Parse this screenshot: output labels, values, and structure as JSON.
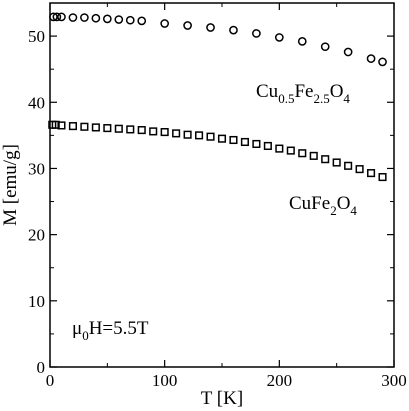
{
  "chart_data": {
    "type": "scatter",
    "xlabel": "T [K]",
    "ylabel": "M [emu/g]",
    "xlim": [
      0,
      300
    ],
    "ylim": [
      0,
      55
    ],
    "x_ticks": [
      0,
      100,
      200,
      300
    ],
    "y_ticks": [
      0,
      10,
      20,
      30,
      40,
      50
    ],
    "grid": false,
    "annotation": {
      "symbol": "μ",
      "sub": "0",
      "text": "H=5.5T"
    },
    "series": [
      {
        "name": "Cu0.5Fe2.5O4",
        "label_parts": [
          {
            "t": "Cu",
            "sub": false
          },
          {
            "t": "0.5",
            "sub": true
          },
          {
            "t": "Fe",
            "sub": false
          },
          {
            "t": "2.5",
            "sub": true
          },
          {
            "t": "O",
            "sub": false
          },
          {
            "t": "4",
            "sub": true
          }
        ],
        "marker": "circle",
        "x": [
          3,
          6,
          10,
          20,
          30,
          40,
          50,
          60,
          70,
          80,
          100,
          120,
          140,
          160,
          180,
          200,
          220,
          240,
          260,
          280,
          290
        ],
        "y": [
          52.9,
          52.9,
          52.9,
          52.8,
          52.8,
          52.7,
          52.6,
          52.5,
          52.4,
          52.3,
          51.9,
          51.6,
          51.3,
          50.9,
          50.4,
          49.8,
          49.2,
          48.4,
          47.6,
          46.6,
          46.1
        ]
      },
      {
        "name": "CuFe2O4",
        "label_parts": [
          {
            "t": "CuFe",
            "sub": false
          },
          {
            "t": "2",
            "sub": true
          },
          {
            "t": "O",
            "sub": false
          },
          {
            "t": "4",
            "sub": true
          }
        ],
        "marker": "square",
        "x": [
          2,
          5,
          10,
          20,
          30,
          40,
          50,
          60,
          70,
          80,
          90,
          100,
          110,
          120,
          130,
          140,
          150,
          160,
          170,
          180,
          190,
          200,
          210,
          220,
          230,
          240,
          250,
          260,
          270,
          280,
          290
        ],
        "y": [
          36.6,
          36.6,
          36.5,
          36.4,
          36.3,
          36.2,
          36.1,
          36.0,
          35.9,
          35.8,
          35.6,
          35.5,
          35.3,
          35.1,
          35.0,
          34.8,
          34.5,
          34.3,
          34.0,
          33.7,
          33.4,
          33.0,
          32.7,
          32.3,
          31.9,
          31.4,
          30.9,
          30.4,
          29.9,
          29.3,
          28.7
        ]
      }
    ]
  }
}
